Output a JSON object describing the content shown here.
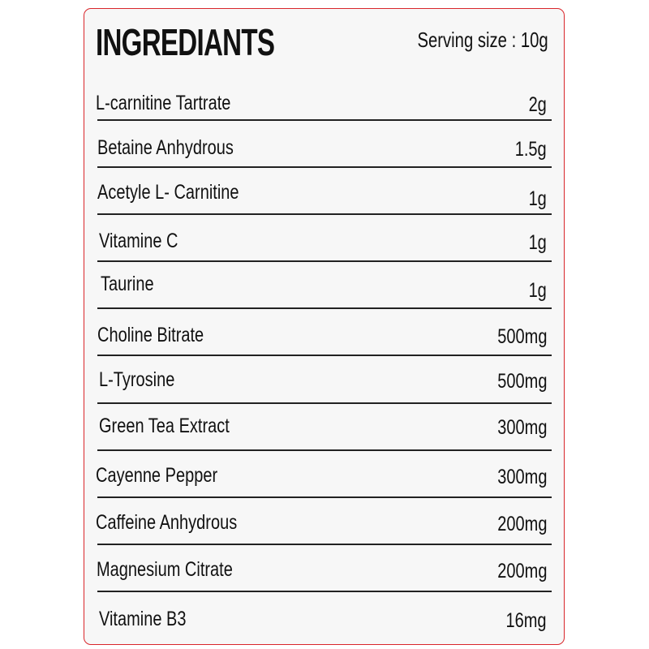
{
  "header": {
    "title": "INGREDIANTS",
    "serving_size": "Serving size : 10g"
  },
  "border_color": "#d9262b",
  "ingredients": [
    {
      "name": "L-carnitine Tartrate",
      "amount": "2g"
    },
    {
      "name": "Betaine Anhydrous",
      "amount": "1.5g"
    },
    {
      "name": "Acetyle L- Carnitine",
      "amount": "1g"
    },
    {
      "name": "Vitamine C",
      "amount": "1g"
    },
    {
      "name": "Taurine",
      "amount": "1g"
    },
    {
      "name": "Choline Bitrate",
      "amount": "500mg"
    },
    {
      "name": "L-Tyrosine",
      "amount": "500mg"
    },
    {
      "name": "Green Tea Extract",
      "amount": "300mg"
    },
    {
      "name": "Cayenne Pepper",
      "amount": "300mg"
    },
    {
      "name": "Caffeine Anhydrous",
      "amount": "200mg"
    },
    {
      "name": "Magnesium Citrate",
      "amount": "200mg"
    },
    {
      "name": "Vitamine B3",
      "amount": "16mg"
    }
  ]
}
